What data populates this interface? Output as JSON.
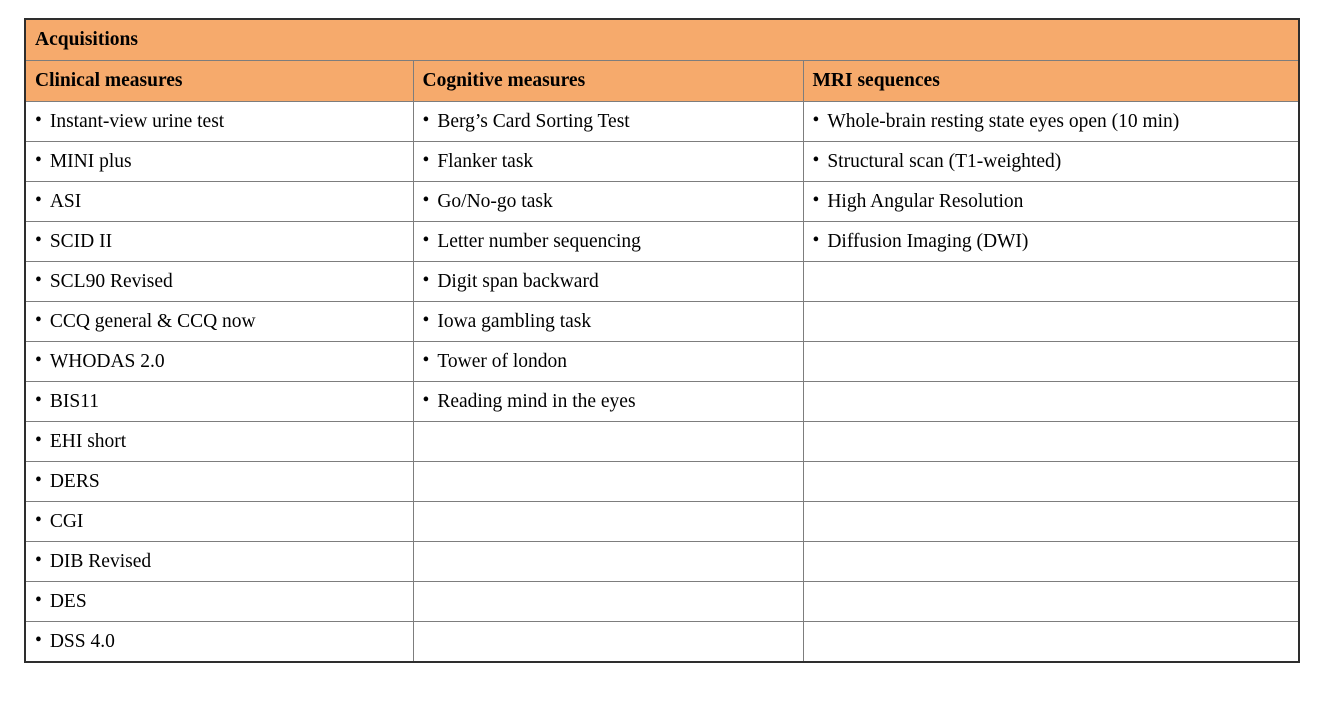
{
  "table": {
    "title": "Acquisitions",
    "bullet": "•",
    "columns": [
      {
        "header": "Clinical measures",
        "items": [
          "Instant-view urine test",
          "MINI plus",
          "ASI",
          "SCID II",
          "SCL90 Revised",
          "CCQ general & CCQ now",
          "WHODAS 2.0",
          "BIS11",
          "EHI short",
          "DERS",
          "CGI",
          "DIB Revised",
          "DES",
          "DSS 4.0"
        ]
      },
      {
        "header": "Cognitive measures",
        "items": [
          "Berg’s Card Sorting Test",
          "Flanker task",
          "Go/No-go task",
          "Letter number sequencing",
          "Digit span backward",
          "Iowa gambling task",
          "Tower of london",
          "Reading mind in the eyes"
        ]
      },
      {
        "header": "MRI sequences",
        "items": [
          "Whole-brain resting state eyes open (10 min)",
          "Structural scan (T1-weighted)",
          "High Angular Resolution",
          "Diffusion Imaging (DWI)"
        ]
      }
    ]
  },
  "colors": {
    "header_bg": "#f6aa6c",
    "border_outer": "#2e2e2e",
    "border_inner": "#7d7d7d",
    "text": "#000000"
  }
}
